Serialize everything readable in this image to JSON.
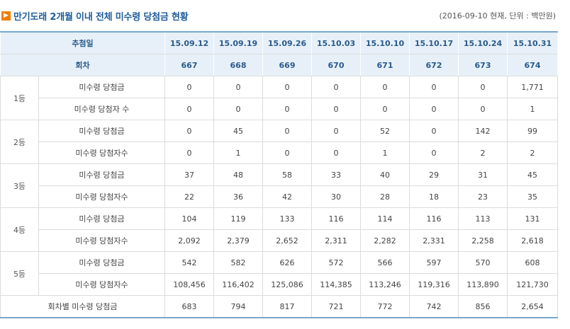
{
  "page": {
    "title": "만기도래 2개월 이내 전체 미수령 당첨금 현황",
    "note": "(2016-09-10 현재, 단위 : 백만원)"
  },
  "table": {
    "draw_date_label": "추첨일",
    "round_label": "회차",
    "dates": [
      "15.09.12",
      "15.09.19",
      "15.09.26",
      "15.10.03",
      "15.10.10",
      "15.10.17",
      "15.10.24",
      "15.10.31"
    ],
    "rounds": [
      "667",
      "668",
      "669",
      "670",
      "671",
      "672",
      "673",
      "674"
    ],
    "groups": [
      {
        "rank": "1등",
        "rows": [
          {
            "label": "미수령 당첨금",
            "values": [
              "0",
              "0",
              "0",
              "0",
              "0",
              "0",
              "0",
              "1,771"
            ]
          },
          {
            "label": "미수령 당첨자 수",
            "values": [
              "0",
              "0",
              "0",
              "0",
              "0",
              "0",
              "0",
              "1"
            ]
          }
        ]
      },
      {
        "rank": "2등",
        "rows": [
          {
            "label": "미수령 당첨금",
            "values": [
              "0",
              "45",
              "0",
              "0",
              "52",
              "0",
              "142",
              "99"
            ]
          },
          {
            "label": "미수령 당첨자수",
            "values": [
              "0",
              "1",
              "0",
              "0",
              "1",
              "0",
              "2",
              "2"
            ]
          }
        ]
      },
      {
        "rank": "3등",
        "rows": [
          {
            "label": "미수령 당첨금",
            "values": [
              "37",
              "48",
              "58",
              "33",
              "40",
              "29",
              "31",
              "45"
            ]
          },
          {
            "label": "미수령 당첨자수",
            "values": [
              "22",
              "36",
              "42",
              "30",
              "28",
              "18",
              "23",
              "35"
            ]
          }
        ]
      },
      {
        "rank": "4등",
        "rows": [
          {
            "label": "미수령 당첨금",
            "values": [
              "104",
              "119",
              "133",
              "116",
              "114",
              "116",
              "113",
              "131"
            ]
          },
          {
            "label": "미수령 당첨자수",
            "values": [
              "2,092",
              "2,379",
              "2,652",
              "2,311",
              "2,282",
              "2,331",
              "2,258",
              "2,618"
            ]
          }
        ]
      },
      {
        "rank": "5등",
        "rows": [
          {
            "label": "미수령 당첨금",
            "values": [
              "542",
              "582",
              "626",
              "572",
              "566",
              "597",
              "570",
              "608"
            ]
          },
          {
            "label": "미수령 당첨자수",
            "values": [
              "108,456",
              "116,402",
              "125,086",
              "114,385",
              "113,246",
              "119,316",
              "113,890",
              "121,730"
            ]
          }
        ]
      }
    ],
    "total": {
      "label": "회차별 미수령 당첨금",
      "values": [
        "683",
        "794",
        "817",
        "721",
        "772",
        "742",
        "856",
        "2,654"
      ]
    }
  },
  "icons": {
    "title_marker": "arrow-right-icon"
  },
  "colors": {
    "accent": "#f07d00",
    "title": "#1d5c9a",
    "header_bg": "#e7f0f8",
    "border": "#dcdcdc"
  }
}
